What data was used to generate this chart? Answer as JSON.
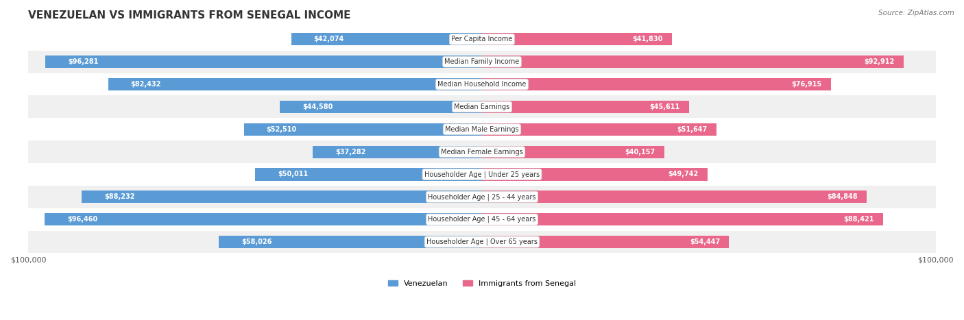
{
  "title": "VENEZUELAN VS IMMIGRANTS FROM SENEGAL INCOME",
  "source": "Source: ZipAtlas.com",
  "max_value": 100000,
  "categories": [
    "Per Capita Income",
    "Median Family Income",
    "Median Household Income",
    "Median Earnings",
    "Median Male Earnings",
    "Median Female Earnings",
    "Householder Age | Under 25 years",
    "Householder Age | 25 - 44 years",
    "Householder Age | 45 - 64 years",
    "Householder Age | Over 65 years"
  ],
  "venezuelan_values": [
    42074,
    96281,
    82432,
    44580,
    52510,
    37282,
    50011,
    88232,
    96460,
    58026
  ],
  "senegal_values": [
    41830,
    92912,
    76915,
    45611,
    51647,
    40157,
    49742,
    84848,
    88421,
    54447
  ],
  "venezuelan_color_light": "#aec6e8",
  "venezuelan_color_dark": "#5b9bd5",
  "senegal_color_light": "#f4a7b9",
  "senegal_color_dark": "#e8678a",
  "venezuelan_label": "Venezuelan",
  "senegal_label": "Immigrants from Senegal",
  "bar_height": 0.55,
  "row_bg_color_odd": "#f0f0f0",
  "row_bg_color_even": "#ffffff",
  "text_dark": "#333333",
  "text_white": "#ffffff"
}
